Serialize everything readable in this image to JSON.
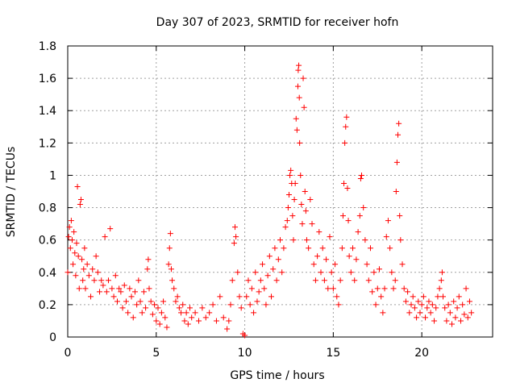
{
  "chart_data": {
    "type": "scatter",
    "title": "Day 307 of 2023, SRMTID for receiver hofn",
    "xlabel": "GPS time / hours",
    "ylabel": "SRMTID / TECUs",
    "xlim": [
      0,
      24
    ],
    "ylim": [
      0,
      1.8
    ],
    "xticks": [
      0,
      5,
      10,
      15,
      20
    ],
    "xtick_labels": [
      "0",
      "5",
      "10",
      "15",
      "20"
    ],
    "yticks": [
      0,
      0.2,
      0.4,
      0.6,
      0.8,
      1,
      1.2,
      1.4,
      1.6,
      1.8
    ],
    "ytick_labels": [
      "0",
      "0.2",
      "0.4",
      "0.6",
      "0.8",
      "1",
      "1.2",
      "1.4",
      "1.6",
      "1.8"
    ],
    "grid": true,
    "marker": "+",
    "color": "#ff0000",
    "series": [
      {
        "name": "SRMTID",
        "points": [
          [
            0.0,
            0.4
          ],
          [
            0.05,
            0.62
          ],
          [
            0.1,
            0.68
          ],
          [
            0.15,
            0.55
          ],
          [
            0.2,
            0.72
          ],
          [
            0.25,
            0.6
          ],
          [
            0.3,
            0.45
          ],
          [
            0.35,
            0.65
          ],
          [
            0.4,
            0.52
          ],
          [
            0.45,
            0.38
          ],
          [
            0.5,
            0.58
          ],
          [
            0.55,
            0.93
          ],
          [
            0.6,
            0.5
          ],
          [
            0.65,
            0.3
          ],
          [
            0.7,
            0.82
          ],
          [
            0.75,
            0.85
          ],
          [
            0.8,
            0.48
          ],
          [
            0.85,
            0.35
          ],
          [
            0.9,
            0.42
          ],
          [
            0.95,
            0.55
          ],
          [
            1.0,
            0.3
          ],
          [
            1.1,
            0.45
          ],
          [
            1.2,
            0.38
          ],
          [
            1.3,
            0.25
          ],
          [
            1.4,
            0.42
          ],
          [
            1.5,
            0.35
          ],
          [
            1.6,
            0.5
          ],
          [
            1.7,
            0.4
          ],
          [
            1.8,
            0.28
          ],
          [
            1.9,
            0.35
          ],
          [
            2.0,
            0.32
          ],
          [
            2.1,
            0.62
          ],
          [
            2.2,
            0.28
          ],
          [
            2.3,
            0.35
          ],
          [
            2.4,
            0.67
          ],
          [
            2.5,
            0.3
          ],
          [
            2.6,
            0.25
          ],
          [
            2.7,
            0.38
          ],
          [
            2.8,
            0.22
          ],
          [
            2.9,
            0.3
          ],
          [
            3.0,
            0.28
          ],
          [
            3.1,
            0.18
          ],
          [
            3.2,
            0.32
          ],
          [
            3.3,
            0.22
          ],
          [
            3.4,
            0.15
          ],
          [
            3.5,
            0.3
          ],
          [
            3.6,
            0.25
          ],
          [
            3.7,
            0.12
          ],
          [
            3.8,
            0.28
          ],
          [
            3.9,
            0.2
          ],
          [
            4.0,
            0.35
          ],
          [
            4.1,
            0.22
          ],
          [
            4.2,
            0.15
          ],
          [
            4.3,
            0.28
          ],
          [
            4.4,
            0.18
          ],
          [
            4.5,
            0.42
          ],
          [
            4.55,
            0.48
          ],
          [
            4.6,
            0.3
          ],
          [
            4.7,
            0.22
          ],
          [
            4.8,
            0.14
          ],
          [
            4.9,
            0.2
          ],
          [
            5.0,
            0.1
          ],
          [
            5.1,
            0.18
          ],
          [
            5.2,
            0.08
          ],
          [
            5.3,
            0.15
          ],
          [
            5.4,
            0.22
          ],
          [
            5.5,
            0.12
          ],
          [
            5.6,
            0.06
          ],
          [
            5.7,
            0.45
          ],
          [
            5.75,
            0.55
          ],
          [
            5.8,
            0.64
          ],
          [
            5.85,
            0.42
          ],
          [
            5.9,
            0.35
          ],
          [
            6.0,
            0.3
          ],
          [
            6.1,
            0.22
          ],
          [
            6.2,
            0.25
          ],
          [
            6.3,
            0.18
          ],
          [
            6.4,
            0.15
          ],
          [
            6.5,
            0.2
          ],
          [
            6.6,
            0.1
          ],
          [
            6.7,
            0.15
          ],
          [
            6.8,
            0.08
          ],
          [
            6.9,
            0.18
          ],
          [
            7.0,
            0.12
          ],
          [
            7.2,
            0.15
          ],
          [
            7.4,
            0.1
          ],
          [
            7.6,
            0.18
          ],
          [
            7.8,
            0.12
          ],
          [
            8.0,
            0.15
          ],
          [
            8.2,
            0.2
          ],
          [
            8.4,
            0.1
          ],
          [
            8.6,
            0.25
          ],
          [
            8.8,
            0.12
          ],
          [
            9.0,
            0.05
          ],
          [
            9.1,
            0.1
          ],
          [
            9.2,
            0.2
          ],
          [
            9.3,
            0.35
          ],
          [
            9.4,
            0.58
          ],
          [
            9.45,
            0.68
          ],
          [
            9.5,
            0.62
          ],
          [
            9.6,
            0.4
          ],
          [
            9.7,
            0.25
          ],
          [
            9.8,
            0.18
          ],
          [
            9.9,
            0.02
          ],
          [
            10.0,
            0.01
          ],
          [
            10.1,
            0.25
          ],
          [
            10.2,
            0.35
          ],
          [
            10.3,
            0.2
          ],
          [
            10.4,
            0.3
          ],
          [
            10.5,
            0.15
          ],
          [
            10.6,
            0.4
          ],
          [
            10.7,
            0.22
          ],
          [
            10.8,
            0.28
          ],
          [
            10.9,
            0.35
          ],
          [
            11.0,
            0.45
          ],
          [
            11.1,
            0.3
          ],
          [
            11.2,
            0.2
          ],
          [
            11.3,
            0.38
          ],
          [
            11.4,
            0.5
          ],
          [
            11.5,
            0.25
          ],
          [
            11.6,
            0.42
          ],
          [
            11.7,
            0.55
          ],
          [
            11.8,
            0.35
          ],
          [
            11.9,
            0.48
          ],
          [
            12.0,
            0.6
          ],
          [
            12.1,
            0.4
          ],
          [
            12.2,
            0.55
          ],
          [
            12.3,
            0.68
          ],
          [
            12.4,
            0.72
          ],
          [
            12.45,
            0.8
          ],
          [
            12.5,
            0.88
          ],
          [
            12.55,
            1.0
          ],
          [
            12.6,
            1.03
          ],
          [
            12.65,
            0.95
          ],
          [
            12.7,
            0.75
          ],
          [
            12.75,
            0.6
          ],
          [
            12.8,
            0.85
          ],
          [
            12.85,
            0.95
          ],
          [
            12.9,
            1.35
          ],
          [
            12.95,
            1.28
          ],
          [
            13.0,
            1.55
          ],
          [
            13.02,
            1.65
          ],
          [
            13.05,
            1.68
          ],
          [
            13.08,
            1.48
          ],
          [
            13.1,
            1.2
          ],
          [
            13.15,
            1.0
          ],
          [
            13.2,
            0.82
          ],
          [
            13.25,
            0.7
          ],
          [
            13.3,
            1.6
          ],
          [
            13.35,
            1.42
          ],
          [
            13.4,
            0.9
          ],
          [
            13.45,
            0.78
          ],
          [
            13.5,
            0.6
          ],
          [
            13.6,
            0.55
          ],
          [
            13.7,
            0.85
          ],
          [
            13.8,
            0.7
          ],
          [
            13.9,
            0.45
          ],
          [
            14.0,
            0.35
          ],
          [
            14.1,
            0.5
          ],
          [
            14.2,
            0.65
          ],
          [
            14.3,
            0.4
          ],
          [
            14.4,
            0.55
          ],
          [
            14.5,
            0.35
          ],
          [
            14.6,
            0.48
          ],
          [
            14.7,
            0.3
          ],
          [
            14.8,
            0.62
          ],
          [
            14.9,
            0.4
          ],
          [
            15.0,
            0.3
          ],
          [
            15.1,
            0.45
          ],
          [
            15.2,
            0.25
          ],
          [
            15.3,
            0.2
          ],
          [
            15.4,
            0.35
          ],
          [
            15.5,
            0.55
          ],
          [
            15.55,
            0.75
          ],
          [
            15.6,
            0.95
          ],
          [
            15.65,
            1.2
          ],
          [
            15.7,
            1.3
          ],
          [
            15.75,
            1.36
          ],
          [
            15.8,
            0.92
          ],
          [
            15.85,
            0.72
          ],
          [
            15.9,
            0.5
          ],
          [
            16.0,
            0.4
          ],
          [
            16.1,
            0.55
          ],
          [
            16.2,
            0.35
          ],
          [
            16.3,
            0.48
          ],
          [
            16.4,
            0.65
          ],
          [
            16.5,
            0.75
          ],
          [
            16.55,
            0.98
          ],
          [
            16.6,
            1.0
          ],
          [
            16.7,
            0.8
          ],
          [
            16.8,
            0.6
          ],
          [
            16.9,
            0.45
          ],
          [
            17.0,
            0.35
          ],
          [
            17.1,
            0.55
          ],
          [
            17.2,
            0.28
          ],
          [
            17.3,
            0.4
          ],
          [
            17.4,
            0.2
          ],
          [
            17.5,
            0.3
          ],
          [
            17.6,
            0.42
          ],
          [
            17.7,
            0.25
          ],
          [
            17.8,
            0.15
          ],
          [
            17.9,
            0.3
          ],
          [
            18.0,
            0.62
          ],
          [
            18.1,
            0.72
          ],
          [
            18.2,
            0.55
          ],
          [
            18.3,
            0.4
          ],
          [
            18.4,
            0.3
          ],
          [
            18.5,
            0.35
          ],
          [
            18.55,
            0.9
          ],
          [
            18.6,
            1.08
          ],
          [
            18.65,
            1.25
          ],
          [
            18.7,
            1.32
          ],
          [
            18.75,
            0.75
          ],
          [
            18.8,
            0.6
          ],
          [
            18.9,
            0.45
          ],
          [
            19.0,
            0.3
          ],
          [
            19.1,
            0.22
          ],
          [
            19.2,
            0.28
          ],
          [
            19.3,
            0.15
          ],
          [
            19.4,
            0.2
          ],
          [
            19.5,
            0.25
          ],
          [
            19.6,
            0.18
          ],
          [
            19.7,
            0.12
          ],
          [
            19.8,
            0.22
          ],
          [
            19.9,
            0.15
          ],
          [
            20.0,
            0.2
          ],
          [
            20.1,
            0.25
          ],
          [
            20.2,
            0.12
          ],
          [
            20.3,
            0.18
          ],
          [
            20.4,
            0.22
          ],
          [
            20.5,
            0.15
          ],
          [
            20.6,
            0.2
          ],
          [
            20.7,
            0.1
          ],
          [
            20.8,
            0.18
          ],
          [
            20.9,
            0.25
          ],
          [
            21.0,
            0.3
          ],
          [
            21.1,
            0.35
          ],
          [
            21.15,
            0.4
          ],
          [
            21.2,
            0.25
          ],
          [
            21.3,
            0.18
          ],
          [
            21.4,
            0.1
          ],
          [
            21.5,
            0.2
          ],
          [
            21.6,
            0.15
          ],
          [
            21.7,
            0.08
          ],
          [
            21.8,
            0.22
          ],
          [
            21.9,
            0.12
          ],
          [
            22.0,
            0.18
          ],
          [
            22.1,
            0.25
          ],
          [
            22.2,
            0.1
          ],
          [
            22.3,
            0.2
          ],
          [
            22.4,
            0.14
          ],
          [
            22.5,
            0.3
          ],
          [
            22.6,
            0.12
          ],
          [
            22.7,
            0.22
          ],
          [
            22.8,
            0.15
          ]
        ]
      }
    ]
  }
}
